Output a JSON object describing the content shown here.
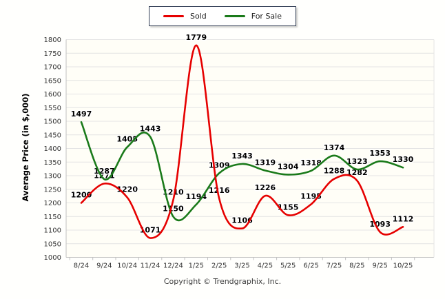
{
  "chart_data": {
    "type": "line",
    "title": "",
    "categories": [
      "8/24",
      "9/24",
      "10/24",
      "11/24",
      "12/24",
      "1/25",
      "2/25",
      "3/25",
      "4/25",
      "5/25",
      "6/25",
      "7/25",
      "8/25",
      "9/25",
      "10/25"
    ],
    "series": [
      {
        "name": "Sold",
        "color": "#e60000",
        "values": [
          1200,
          1271,
          1220,
          1071,
          1210,
          1779,
          1216,
          1106,
          1226,
          1155,
          1195,
          1288,
          1282,
          1093,
          1112
        ]
      },
      {
        "name": "For Sale",
        "color": "#1a7a1a",
        "values": [
          1497,
          1287,
          1405,
          1443,
          1150,
          1194,
          1309,
          1343,
          1319,
          1304,
          1318,
          1374,
          1323,
          1353,
          1330
        ]
      }
    ],
    "xlabel": "",
    "ylabel": "Average Price (in $,000)",
    "ylim": [
      1000,
      1800
    ],
    "ytick_step": 50,
    "grid": "horizontal",
    "legend_position": "top-center",
    "data_labels": true
  },
  "footer": {
    "copyright": "Copyright © Trendgraphix, Inc."
  },
  "colors": {
    "sold_line": "#e60000",
    "for_sale_line": "#1a7a1a",
    "gridline": "#e4e4e4",
    "axis_line": "#c0c0c0",
    "tick_text": "#333333",
    "data_label_text": "#000000",
    "plot_background": "#fffef7",
    "legend_border": "#2e3a52"
  }
}
